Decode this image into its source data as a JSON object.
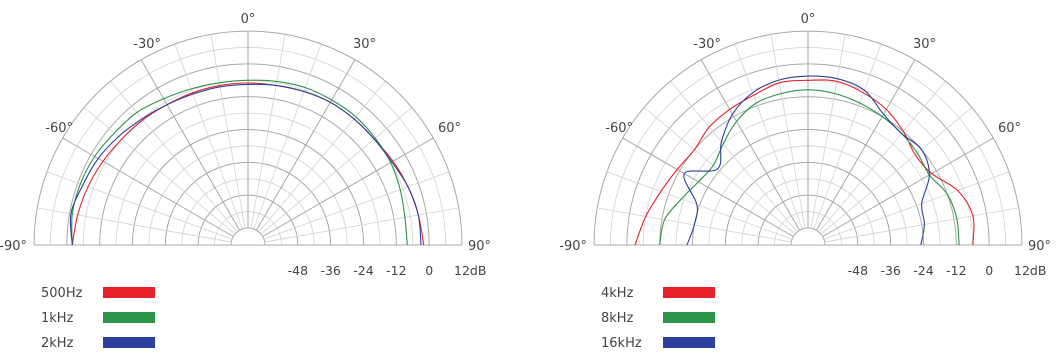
{
  "chart_data": [
    {
      "type": "polar-line",
      "angle_labels": [
        "-90°",
        "-60°",
        "-30°",
        "0°",
        "30°",
        "60°",
        "90°"
      ],
      "radial_tick_labels": [
        "-48",
        "-36",
        "-24",
        "-12",
        "0",
        "12dB"
      ],
      "rlim": [
        -60,
        12
      ],
      "grid": true,
      "legend_position": "bottom-left",
      "series": [
        {
          "name": "500Hz",
          "color": "#e8202a",
          "angles": [
            -90,
            -80,
            -70,
            -60,
            -50,
            -40,
            -30,
            -20,
            -10,
            0,
            10,
            20,
            30,
            40,
            50,
            60,
            70,
            80,
            90
          ],
          "values": [
            -2,
            -3,
            -4,
            -5,
            -6,
            -6.5,
            -7,
            -7,
            -7,
            -7,
            -7,
            -6.5,
            -6,
            -6,
            -6,
            -5,
            -4,
            -3,
            -2
          ]
        },
        {
          "name": "1kHz",
          "color": "#2a9448",
          "angles": [
            -90,
            -80,
            -70,
            -60,
            -50,
            -40,
            -30,
            -20,
            -10,
            0,
            10,
            20,
            30,
            40,
            50,
            60,
            70,
            80,
            90
          ],
          "values": [
            -2,
            -1,
            -1,
            -1.5,
            -2.5,
            -3,
            -4.5,
            -5.5,
            -6,
            -6,
            -5.5,
            -5,
            -5,
            -5,
            -5.5,
            -6,
            -7,
            -8,
            -8
          ]
        },
        {
          "name": "2kHz",
          "color": "#2e3f9e",
          "angles": [
            -90,
            -80,
            -70,
            -60,
            -50,
            -40,
            -30,
            -20,
            -10,
            0,
            10,
            20,
            30,
            40,
            50,
            60,
            70,
            80,
            90
          ],
          "values": [
            -2,
            -0.5,
            -2,
            -3,
            -4.5,
            -6,
            -7,
            -7.5,
            -7.5,
            -7.5,
            -7,
            -6.5,
            -6,
            -6,
            -6,
            -5.5,
            -4,
            -3,
            -3
          ]
        }
      ]
    },
    {
      "type": "polar-line",
      "angle_labels": [
        "-90°",
        "-60°",
        "-30°",
        "0°",
        "30°",
        "60°",
        "90°"
      ],
      "radial_tick_labels": [
        "-48",
        "-36",
        "-24",
        "-12",
        "0",
        "12dB"
      ],
      "rlim": [
        -60,
        12
      ],
      "grid": true,
      "legend_position": "bottom-left",
      "series": [
        {
          "name": "4kHz",
          "color": "#e8202a",
          "angles": [
            -90,
            -80,
            -70,
            -60,
            -50,
            -40,
            -30,
            -20,
            -10,
            0,
            10,
            20,
            30,
            40,
            50,
            60,
            70,
            80,
            90
          ],
          "values": [
            -3,
            -6,
            -9,
            -11,
            -12,
            -10,
            -9,
            -8,
            -6,
            -6,
            -5.5,
            -7,
            -9,
            -12,
            -15,
            -14,
            -8,
            -5,
            -6
          ]
        },
        {
          "name": "8kHz",
          "color": "#2a9448",
          "angles": [
            -90,
            -80,
            -70,
            -60,
            -50,
            -40,
            -30,
            -20,
            -10,
            0,
            10,
            20,
            30,
            40,
            50,
            60,
            70,
            80,
            90
          ],
          "values": [
            -12,
            -13,
            -17,
            -20,
            -21,
            -18,
            -14,
            -11,
            -10,
            -9.5,
            -10,
            -11,
            -12,
            -13,
            -14,
            -15,
            -12,
            -11,
            -11
          ]
        },
        {
          "name": "16kHz",
          "color": "#2e3f9e",
          "angles": [
            -90,
            -80,
            -70,
            -60,
            -50,
            -40,
            -30,
            -20,
            -10,
            0,
            10,
            20,
            30,
            40,
            50,
            60,
            70,
            80,
            90
          ],
          "values": [
            -22,
            -24,
            -23,
            -14,
            -23,
            -17,
            -11,
            -7,
            -5,
            -4.5,
            -4.5,
            -6,
            -11,
            -13,
            -12,
            -15,
            -22,
            -23,
            -25
          ]
        }
      ]
    }
  ]
}
